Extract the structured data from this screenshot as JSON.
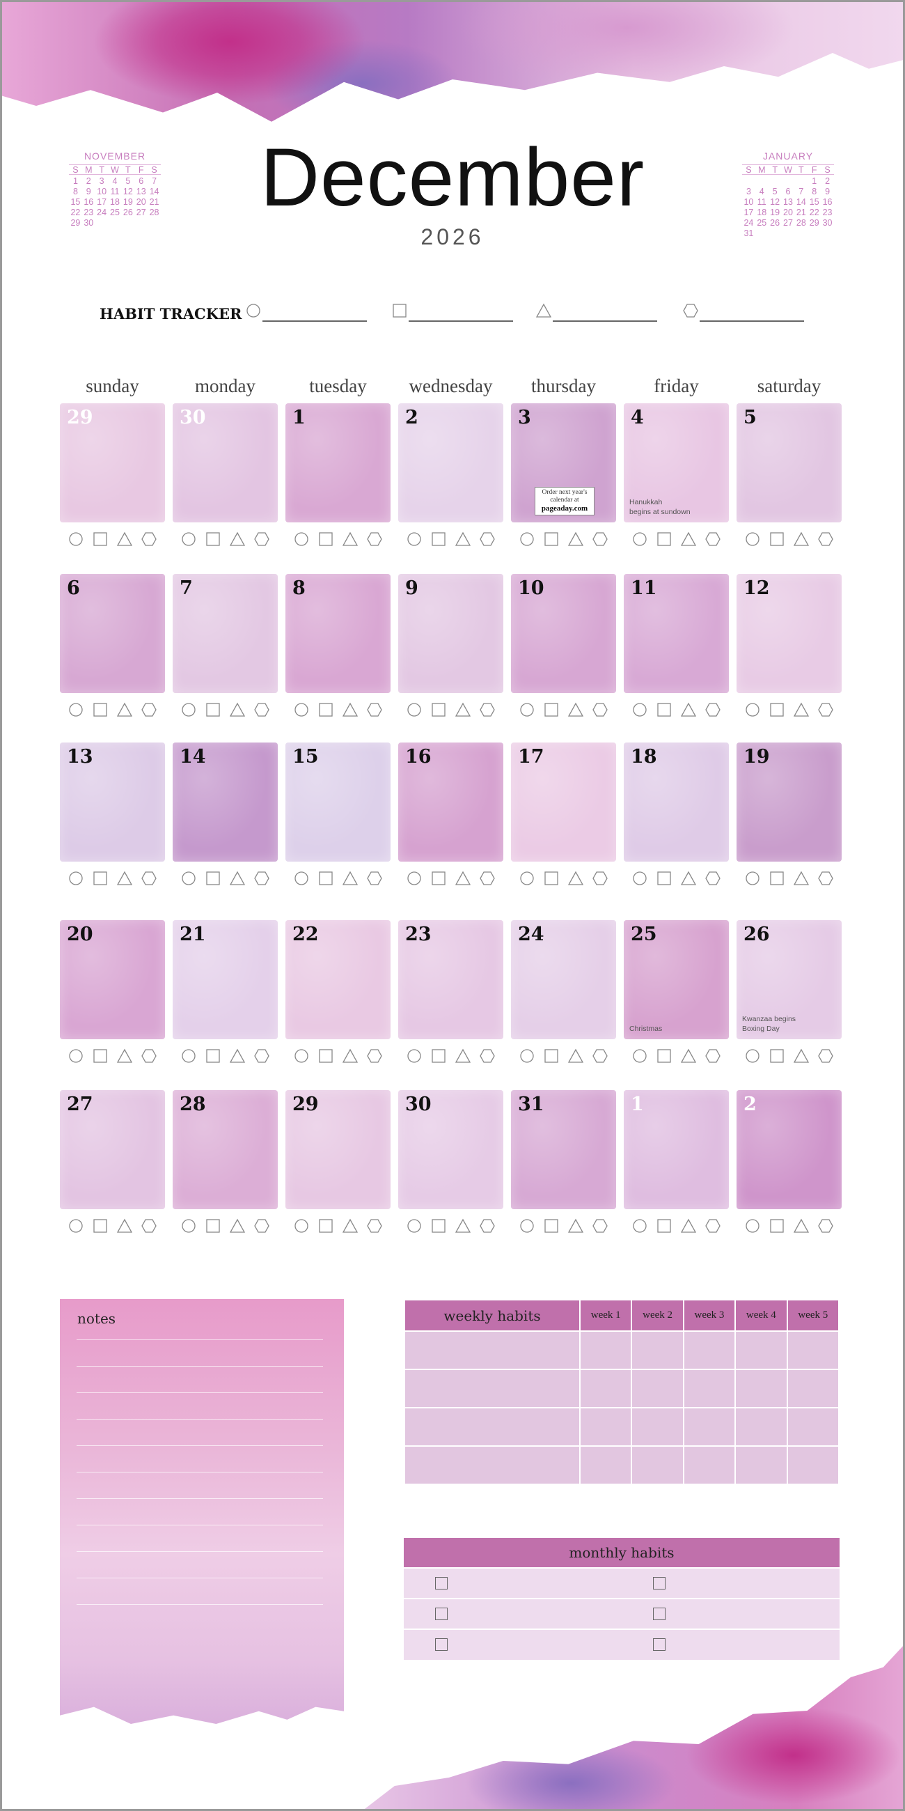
{
  "month_title": "December",
  "year": "2026",
  "prev_month": {
    "name": "NOVEMBER",
    "weekdays": [
      "S",
      "M",
      "T",
      "W",
      "T",
      "F",
      "S"
    ],
    "weeks": [
      [
        "1",
        "2",
        "3",
        "4",
        "5",
        "6",
        "7"
      ],
      [
        "8",
        "9",
        "10",
        "11",
        "12",
        "13",
        "14"
      ],
      [
        "15",
        "16",
        "17",
        "18",
        "19",
        "20",
        "21"
      ],
      [
        "22",
        "23",
        "24",
        "25",
        "26",
        "27",
        "28"
      ],
      [
        "29",
        "30",
        "",
        "",
        "",
        "",
        ""
      ]
    ]
  },
  "next_month": {
    "name": "JANUARY",
    "weekdays": [
      "S",
      "M",
      "T",
      "W",
      "T",
      "F",
      "S"
    ],
    "weeks": [
      [
        "",
        "",
        "",
        "",
        "",
        "1",
        "2"
      ],
      [
        "3",
        "4",
        "5",
        "6",
        "7",
        "8",
        "9"
      ],
      [
        "10",
        "11",
        "12",
        "13",
        "14",
        "15",
        "16"
      ],
      [
        "17",
        "18",
        "19",
        "20",
        "21",
        "22",
        "23"
      ],
      [
        "24",
        "25",
        "26",
        "27",
        "28",
        "29",
        "30"
      ],
      [
        "31",
        "",
        "",
        "",
        "",
        "",
        ""
      ]
    ]
  },
  "habit_tracker": {
    "label": "HABIT TRACKER",
    "shapes": [
      "circle",
      "square",
      "triangle",
      "hexagon"
    ]
  },
  "weekdays": [
    "sunday",
    "monday",
    "tuesday",
    "wednesday",
    "thursday",
    "friday",
    "saturday"
  ],
  "weeks": [
    [
      {
        "n": "29",
        "muted": true,
        "color": "#e8c8e2"
      },
      {
        "n": "30",
        "muted": true,
        "color": "#e3c5e2"
      },
      {
        "n": "1",
        "color": "#d9a8d3"
      },
      {
        "n": "2",
        "color": "#e6d3ea"
      },
      {
        "n": "3",
        "color": "#cfa3d0",
        "promo": {
          "line1": "Order next year's",
          "line2": "calendar at",
          "site": "pageaday.com"
        }
      },
      {
        "n": "4",
        "color": "#e8c6e3",
        "notes": [
          "Hanukkah",
          "begins at sundown"
        ]
      },
      {
        "n": "5",
        "color": "#e2c6e2"
      }
    ],
    [
      {
        "n": "6",
        "color": "#d7a8d3"
      },
      {
        "n": "7",
        "color": "#e3c8e3"
      },
      {
        "n": "8",
        "color": "#d9a7d3"
      },
      {
        "n": "9",
        "color": "#e3c8e3"
      },
      {
        "n": "10",
        "color": "#d7a7d3"
      },
      {
        "n": "11",
        "color": "#d8a9d5"
      },
      {
        "n": "12",
        "color": "#e8cbe5"
      }
    ],
    [
      {
        "n": "13",
        "color": "#ddcbe7"
      },
      {
        "n": "14",
        "color": "#c599cd"
      },
      {
        "n": "15",
        "color": "#ddd0ea"
      },
      {
        "n": "16",
        "color": "#d6a2d0"
      },
      {
        "n": "17",
        "color": "#ebcbe5"
      },
      {
        "n": "18",
        "color": "#dfcbe7"
      },
      {
        "n": "19",
        "color": "#c99dcc"
      }
    ],
    [
      {
        "n": "20",
        "color": "#d9a6d3"
      },
      {
        "n": "21",
        "color": "#e4d0ea"
      },
      {
        "n": "22",
        "color": "#e9c9e3"
      },
      {
        "n": "23",
        "color": "#e6c8e4"
      },
      {
        "n": "24",
        "color": "#e5cfe8"
      },
      {
        "n": "25",
        "color": "#d7a2cf",
        "notes": [
          "Christmas"
        ]
      },
      {
        "n": "26",
        "color": "#e5cbe6",
        "notes": [
          "Kwanzaa begins",
          "Boxing Day"
        ]
      }
    ],
    [
      {
        "n": "27",
        "color": "#e3c4e2"
      },
      {
        "n": "28",
        "color": "#dcaed6"
      },
      {
        "n": "29",
        "color": "#e7c8e3"
      },
      {
        "n": "30",
        "color": "#e6cbe6"
      },
      {
        "n": "31",
        "color": "#d7a9d4"
      },
      {
        "n": "1",
        "muted": true,
        "color": "#dfbde0"
      },
      {
        "n": "2",
        "muted": true,
        "color": "#cf95cb"
      }
    ]
  ],
  "notes": {
    "title": "notes"
  },
  "weekly_habits": {
    "title": "weekly habits",
    "columns": [
      "week 1",
      "week 2",
      "week 3",
      "week 4",
      "week 5"
    ],
    "row_count": 4
  },
  "monthly_habits": {
    "title": "monthly habits",
    "row_count": 3
  },
  "colors": {
    "accent": "#c070ab",
    "table_row": "#e2c6e0",
    "monthly_row": "#eedcee",
    "mini_calendar": "#c77dbe"
  }
}
